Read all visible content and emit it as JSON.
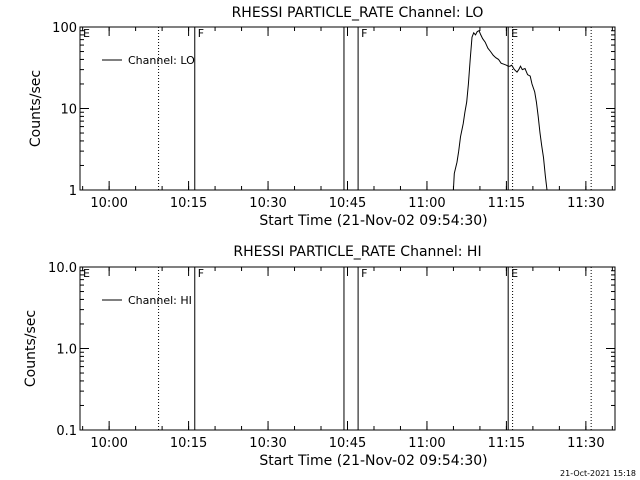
{
  "chart_data": [
    {
      "type": "line",
      "title": "RHESSI PARTICLE_RATE Channel: LO",
      "xlabel": "Start Time (21-Nov-02 09:54:30)",
      "ylabel": "Counts/sec",
      "yscale": "log",
      "ylim": [
        1,
        100
      ],
      "xlim": [
        "09:54:30",
        "11:35:30"
      ],
      "x_ticks": [
        "10:00",
        "10:15",
        "10:30",
        "10:45",
        "11:00",
        "11:15",
        "11:30"
      ],
      "y_ticks": [
        "1",
        "10",
        "100"
      ],
      "legend": {
        "position": "top-left",
        "entries": [
          "Channel: LO"
        ]
      },
      "solid_markers": [
        "10:16:10",
        "10:44:20",
        "10:47:00",
        "11:15:20"
      ],
      "dotted_markers": [
        "10:09:20",
        "11:16:10",
        "11:31:00"
      ],
      "marker_labels": [
        {
          "label": "E",
          "time": "09:54:30"
        },
        {
          "label": "F",
          "time": "10:16:10"
        },
        {
          "label": "F",
          "time": "10:47:00"
        },
        {
          "label": "E",
          "time": "11:15:20"
        }
      ],
      "series": [
        {
          "name": "Channel: LO",
          "points": [
            [
              "11:05:00",
              1
            ],
            [
              "11:05:10",
              1.6
            ],
            [
              "11:05:40",
              2.2
            ],
            [
              "11:06:00",
              3.0
            ],
            [
              "11:06:20",
              4.5
            ],
            [
              "11:06:50",
              6.5
            ],
            [
              "11:07:10",
              9.0
            ],
            [
              "11:07:30",
              12
            ],
            [
              "11:07:50",
              20
            ],
            [
              "11:08:10",
              40
            ],
            [
              "11:08:30",
              75
            ],
            [
              "11:08:50",
              85
            ],
            [
              "11:09:10",
              80
            ],
            [
              "11:09:30",
              88
            ],
            [
              "11:09:50",
              90
            ],
            [
              "11:10:10",
              80
            ],
            [
              "11:10:30",
              72
            ],
            [
              "11:11:00",
              65
            ],
            [
              "11:11:30",
              55
            ],
            [
              "11:12:00",
              50
            ],
            [
              "11:12:30",
              45
            ],
            [
              "11:13:00",
              42
            ],
            [
              "11:13:30",
              40
            ],
            [
              "11:14:00",
              36
            ],
            [
              "11:14:30",
              35
            ],
            [
              "11:15:00",
              34
            ],
            [
              "11:15:20",
              33
            ],
            [
              "11:15:40",
              33
            ],
            [
              "11:16:00",
              34
            ],
            [
              "11:16:30",
              30
            ],
            [
              "11:17:00",
              28
            ],
            [
              "11:17:20",
              30
            ],
            [
              "11:17:40",
              33
            ],
            [
              "11:18:00",
              30
            ],
            [
              "11:18:30",
              31
            ],
            [
              "11:19:00",
              26
            ],
            [
              "11:19:30",
              25
            ],
            [
              "11:19:50",
              20
            ],
            [
              "11:20:20",
              16
            ],
            [
              "11:20:40",
              12
            ],
            [
              "11:21:00",
              8
            ],
            [
              "11:21:20",
              5
            ],
            [
              "11:21:40",
              3.5
            ],
            [
              "11:22:00",
              2.5
            ],
            [
              "11:22:20",
              1.5
            ],
            [
              "11:22:40",
              1
            ]
          ]
        }
      ]
    },
    {
      "type": "line",
      "title": "RHESSI PARTICLE_RATE Channel: HI",
      "xlabel": "Start Time (21-Nov-02 09:54:30)",
      "ylabel": "Counts/sec",
      "yscale": "log",
      "ylim": [
        0.1,
        10
      ],
      "xlim": [
        "09:54:30",
        "11:35:30"
      ],
      "x_ticks": [
        "10:00",
        "10:15",
        "10:30",
        "10:45",
        "11:00",
        "11:15",
        "11:30"
      ],
      "y_ticks": [
        "0.1",
        "1.0",
        "10.0"
      ],
      "legend": {
        "position": "top-left",
        "entries": [
          "Channel: HI"
        ]
      },
      "solid_markers": [
        "10:16:10",
        "10:44:20",
        "10:47:00",
        "11:15:20"
      ],
      "dotted_markers": [
        "10:09:20",
        "11:16:10",
        "11:31:00"
      ],
      "marker_labels": [
        {
          "label": "E",
          "time": "09:54:30"
        },
        {
          "label": "F",
          "time": "10:16:10"
        },
        {
          "label": "F",
          "time": "10:47:00"
        },
        {
          "label": "E",
          "time": "11:15:20"
        }
      ],
      "series": [
        {
          "name": "Channel: HI",
          "points": []
        }
      ]
    }
  ],
  "footer": {
    "timestamp": "21-Oct-2021 15:18"
  }
}
